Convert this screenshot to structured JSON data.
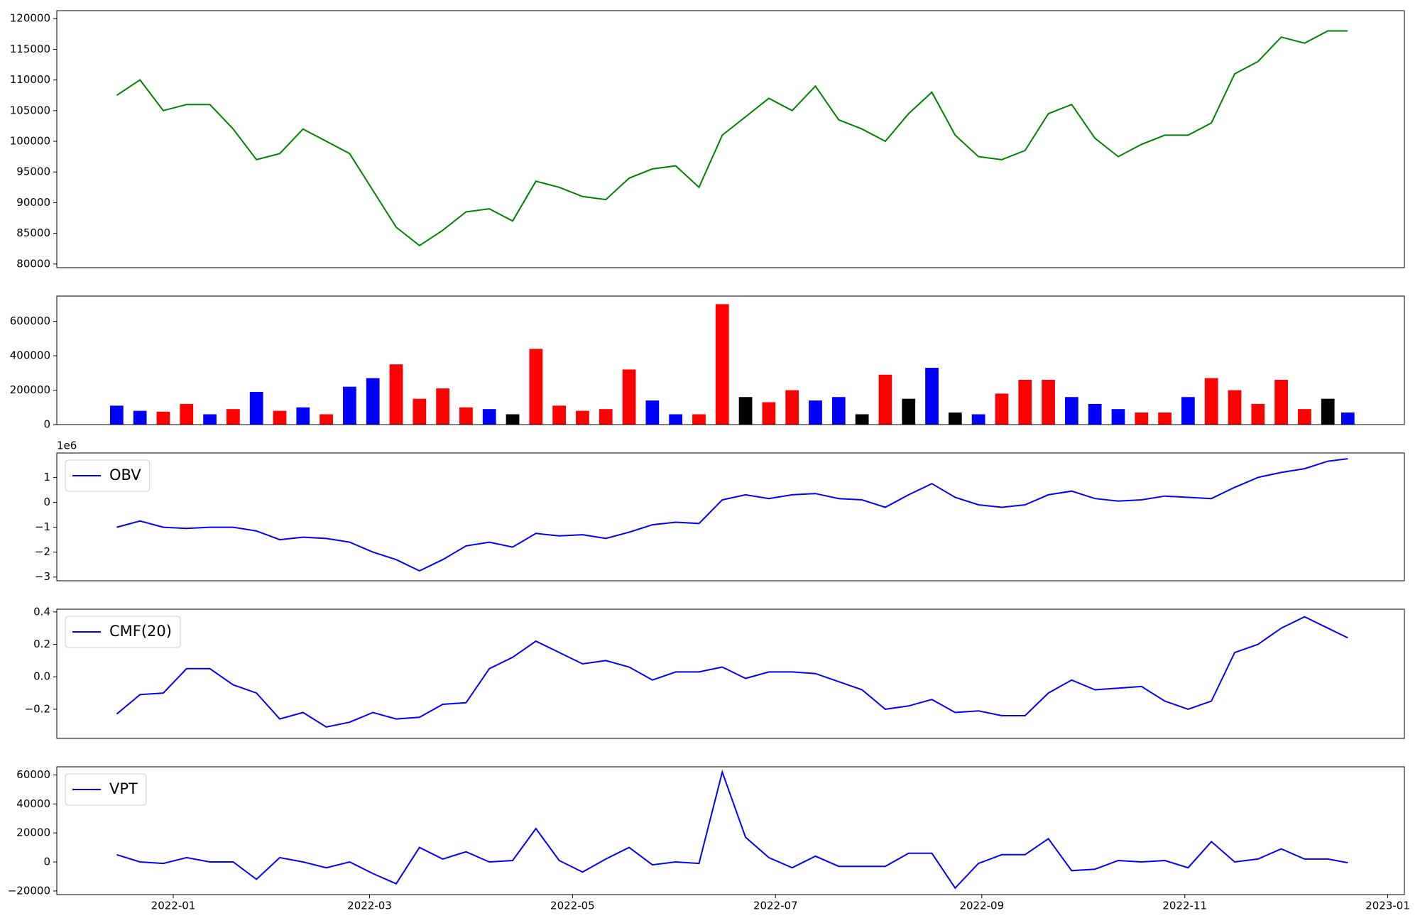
{
  "chart_data": [
    {
      "type": "line",
      "color": "#008000",
      "x": [
        "2021-12-15",
        "2021-12-22",
        "2021-12-29",
        "2022-01-05",
        "2022-01-12",
        "2022-01-19",
        "2022-01-26",
        "2022-02-02",
        "2022-02-09",
        "2022-02-16",
        "2022-02-23",
        "2022-03-02",
        "2022-03-09",
        "2022-03-16",
        "2022-03-23",
        "2022-03-30",
        "2022-04-06",
        "2022-04-13",
        "2022-04-20",
        "2022-04-27",
        "2022-05-04",
        "2022-05-11",
        "2022-05-18",
        "2022-05-25",
        "2022-06-01",
        "2022-06-08",
        "2022-06-15",
        "2022-06-22",
        "2022-06-29",
        "2022-07-06",
        "2022-07-13",
        "2022-07-20",
        "2022-07-27",
        "2022-08-03",
        "2022-08-10",
        "2022-08-17",
        "2022-08-24",
        "2022-08-31",
        "2022-09-07",
        "2022-09-14",
        "2022-09-21",
        "2022-09-28",
        "2022-10-05",
        "2022-10-12",
        "2022-10-19",
        "2022-10-26",
        "2022-11-02",
        "2022-11-09",
        "2022-11-16",
        "2022-11-23",
        "2022-11-30",
        "2022-12-07",
        "2022-12-14",
        "2022-12-20"
      ],
      "values": [
        107500,
        110000,
        105000,
        106000,
        106000,
        102000,
        97000,
        98000,
        102000,
        100000,
        98000,
        92000,
        86000,
        83000,
        85500,
        88500,
        89000,
        87000,
        93500,
        92500,
        91000,
        90500,
        94000,
        95500,
        96000,
        92500,
        101000,
        104000,
        107000,
        105000,
        109000,
        103500,
        102000,
        100000,
        104500,
        108000,
        101000,
        97500,
        97000,
        98500,
        104500,
        106000,
        100500,
        97500,
        99500,
        101000,
        101000,
        103000,
        111000,
        113000,
        117000,
        116000,
        118000,
        118000
      ],
      "xlim": [
        "2021-11-27",
        "2023-01-06"
      ],
      "ylim": [
        79400,
        121300
      ],
      "yticks": [
        80000,
        85000,
        90000,
        95000,
        100000,
        105000,
        110000,
        115000,
        120000
      ]
    },
    {
      "type": "bar",
      "x": [
        "2021-12-15",
        "2021-12-22",
        "2021-12-29",
        "2022-01-05",
        "2022-01-12",
        "2022-01-19",
        "2022-01-26",
        "2022-02-02",
        "2022-02-09",
        "2022-02-16",
        "2022-02-23",
        "2022-03-02",
        "2022-03-09",
        "2022-03-16",
        "2022-03-23",
        "2022-03-30",
        "2022-04-06",
        "2022-04-13",
        "2022-04-20",
        "2022-04-27",
        "2022-05-04",
        "2022-05-11",
        "2022-05-18",
        "2022-05-25",
        "2022-06-01",
        "2022-06-08",
        "2022-06-15",
        "2022-06-22",
        "2022-06-29",
        "2022-07-06",
        "2022-07-13",
        "2022-07-20",
        "2022-07-27",
        "2022-08-03",
        "2022-08-10",
        "2022-08-17",
        "2022-08-24",
        "2022-08-31",
        "2022-09-07",
        "2022-09-14",
        "2022-09-21",
        "2022-09-28",
        "2022-10-05",
        "2022-10-12",
        "2022-10-19",
        "2022-10-26",
        "2022-11-02",
        "2022-11-09",
        "2022-11-16",
        "2022-11-23",
        "2022-11-30",
        "2022-12-07",
        "2022-12-14",
        "2022-12-20"
      ],
      "values": [
        110000,
        80000,
        75000,
        120000,
        60000,
        90000,
        190000,
        80000,
        100000,
        60000,
        220000,
        270000,
        350000,
        150000,
        210000,
        100000,
        90000,
        60000,
        440000,
        110000,
        80000,
        90000,
        320000,
        140000,
        60000,
        60000,
        700000,
        160000,
        130000,
        200000,
        140000,
        160000,
        60000,
        290000,
        150000,
        330000,
        70000,
        60000,
        180000,
        260000,
        260000,
        160000,
        120000,
        90000,
        70000,
        70000,
        160000,
        270000,
        200000,
        120000,
        260000,
        90000,
        150000,
        70000
      ],
      "colors": [
        "#0000ff",
        "#0000ff",
        "#ff0000",
        "#ff0000",
        "#0000ff",
        "#ff0000",
        "#0000ff",
        "#ff0000",
        "#0000ff",
        "#ff0000",
        "#0000ff",
        "#0000ff",
        "#ff0000",
        "#ff0000",
        "#ff0000",
        "#ff0000",
        "#0000ff",
        "#000000",
        "#ff0000",
        "#ff0000",
        "#ff0000",
        "#ff0000",
        "#ff0000",
        "#0000ff",
        "#0000ff",
        "#ff0000",
        "#ff0000",
        "#000000",
        "#ff0000",
        "#ff0000",
        "#0000ff",
        "#0000ff",
        "#000000",
        "#ff0000",
        "#000000",
        "#0000ff",
        "#000000",
        "#0000ff",
        "#ff0000",
        "#ff0000",
        "#ff0000",
        "#0000ff",
        "#0000ff",
        "#0000ff",
        "#ff0000",
        "#ff0000",
        "#0000ff",
        "#ff0000",
        "#ff0000",
        "#ff0000",
        "#ff0000",
        "#ff0000",
        "#000000",
        "#0000ff"
      ],
      "xlim": [
        "2021-11-27",
        "2023-01-06"
      ],
      "ylim": [
        0,
        747000
      ],
      "yticks": [
        0,
        200000,
        400000,
        600000
      ]
    },
    {
      "type": "line",
      "legend": "upper left",
      "offset_label": "1e6",
      "x": [
        "2021-12-15",
        "2021-12-22",
        "2021-12-29",
        "2022-01-05",
        "2022-01-12",
        "2022-01-19",
        "2022-01-26",
        "2022-02-02",
        "2022-02-09",
        "2022-02-16",
        "2022-02-23",
        "2022-03-02",
        "2022-03-09",
        "2022-03-16",
        "2022-03-23",
        "2022-03-30",
        "2022-04-06",
        "2022-04-13",
        "2022-04-20",
        "2022-04-27",
        "2022-05-04",
        "2022-05-11",
        "2022-05-18",
        "2022-05-25",
        "2022-06-01",
        "2022-06-08",
        "2022-06-15",
        "2022-06-22",
        "2022-06-29",
        "2022-07-06",
        "2022-07-13",
        "2022-07-20",
        "2022-07-27",
        "2022-08-03",
        "2022-08-10",
        "2022-08-17",
        "2022-08-24",
        "2022-08-31",
        "2022-09-07",
        "2022-09-14",
        "2022-09-21",
        "2022-09-28",
        "2022-10-05",
        "2022-10-12",
        "2022-10-19",
        "2022-10-26",
        "2022-11-02",
        "2022-11-09",
        "2022-11-16",
        "2022-11-23",
        "2022-11-30",
        "2022-12-07",
        "2022-12-14",
        "2022-12-20"
      ],
      "series": [
        {
          "name": "OBV",
          "color": "#0000ff",
          "values": [
            -1.0,
            -0.75,
            -1.0,
            -1.05,
            -1.0,
            -1.0,
            -1.15,
            -1.5,
            -1.4,
            -1.45,
            -1.6,
            -2.0,
            -2.3,
            -2.75,
            -2.3,
            -1.75,
            -1.6,
            -1.8,
            -1.25,
            -1.35,
            -1.3,
            -1.45,
            -1.2,
            -0.9,
            -0.8,
            -0.85,
            0.1,
            0.3,
            0.15,
            0.3,
            0.35,
            0.15,
            0.1,
            -0.2,
            0.3,
            0.75,
            0.2,
            -0.1,
            -0.2,
            -0.1,
            0.3,
            0.45,
            0.15,
            0.05,
            0.1,
            0.25,
            0.2,
            0.15,
            0.6,
            1.0,
            1.2,
            1.35,
            1.65,
            1.75
          ]
        }
      ],
      "xlim": [
        "2021-11-27",
        "2023-01-06"
      ],
      "ylim": [
        -3.15,
        1.98
      ],
      "yticks": [
        {
          "value": -3,
          "label": "−3"
        },
        {
          "value": -2,
          "label": "−2"
        },
        {
          "value": -1,
          "label": "−1"
        },
        0,
        1
      ]
    },
    {
      "type": "line",
      "legend": "upper left",
      "x": [
        "2021-12-15",
        "2021-12-22",
        "2021-12-29",
        "2022-01-05",
        "2022-01-12",
        "2022-01-19",
        "2022-01-26",
        "2022-02-02",
        "2022-02-09",
        "2022-02-16",
        "2022-02-23",
        "2022-03-02",
        "2022-03-09",
        "2022-03-16",
        "2022-03-23",
        "2022-03-30",
        "2022-04-06",
        "2022-04-13",
        "2022-04-20",
        "2022-04-27",
        "2022-05-04",
        "2022-05-11",
        "2022-05-18",
        "2022-05-25",
        "2022-06-01",
        "2022-06-08",
        "2022-06-15",
        "2022-06-22",
        "2022-06-29",
        "2022-07-06",
        "2022-07-13",
        "2022-07-20",
        "2022-07-27",
        "2022-08-03",
        "2022-08-10",
        "2022-08-17",
        "2022-08-24",
        "2022-08-31",
        "2022-09-07",
        "2022-09-14",
        "2022-09-21",
        "2022-09-28",
        "2022-10-05",
        "2022-10-12",
        "2022-10-19",
        "2022-10-26",
        "2022-11-02",
        "2022-11-09",
        "2022-11-16",
        "2022-11-23",
        "2022-11-30",
        "2022-12-07",
        "2022-12-14",
        "2022-12-20"
      ],
      "series": [
        {
          "name": "CMF(20)",
          "color": "#0000ff",
          "values": [
            -0.23,
            -0.11,
            -0.1,
            0.05,
            0.05,
            -0.05,
            -0.1,
            -0.26,
            -0.22,
            -0.31,
            -0.28,
            -0.22,
            -0.26,
            -0.25,
            -0.17,
            -0.16,
            0.05,
            0.12,
            0.22,
            0.15,
            0.08,
            0.1,
            0.06,
            -0.02,
            0.03,
            0.03,
            0.06,
            -0.01,
            0.03,
            0.03,
            0.02,
            -0.03,
            -0.08,
            -0.2,
            -0.18,
            -0.14,
            -0.22,
            -0.21,
            -0.24,
            -0.24,
            -0.1,
            -0.02,
            -0.08,
            -0.07,
            -0.06,
            -0.15,
            -0.2,
            -0.15,
            0.15,
            0.2,
            0.3,
            0.37,
            0.3,
            0.24
          ]
        }
      ],
      "xlim": [
        "2021-11-27",
        "2023-01-06"
      ],
      "ylim": [
        -0.38,
        0.417
      ],
      "yticks": [
        {
          "value": -0.2,
          "label": "−0.2"
        },
        {
          "value": 0,
          "label": "0.0"
        },
        0.2,
        0.4
      ]
    },
    {
      "type": "line",
      "legend": "upper left",
      "x": [
        "2021-12-15",
        "2021-12-22",
        "2021-12-29",
        "2022-01-05",
        "2022-01-12",
        "2022-01-19",
        "2022-01-26",
        "2022-02-02",
        "2022-02-09",
        "2022-02-16",
        "2022-02-23",
        "2022-03-02",
        "2022-03-09",
        "2022-03-16",
        "2022-03-23",
        "2022-03-30",
        "2022-04-06",
        "2022-04-13",
        "2022-04-20",
        "2022-04-27",
        "2022-05-04",
        "2022-05-11",
        "2022-05-18",
        "2022-05-25",
        "2022-06-01",
        "2022-06-08",
        "2022-06-15",
        "2022-06-22",
        "2022-06-29",
        "2022-07-06",
        "2022-07-13",
        "2022-07-20",
        "2022-07-27",
        "2022-08-03",
        "2022-08-10",
        "2022-08-17",
        "2022-08-24",
        "2022-08-31",
        "2022-09-07",
        "2022-09-14",
        "2022-09-21",
        "2022-09-28",
        "2022-10-05",
        "2022-10-12",
        "2022-10-19",
        "2022-10-26",
        "2022-11-02",
        "2022-11-09",
        "2022-11-16",
        "2022-11-23",
        "2022-11-30",
        "2022-12-07",
        "2022-12-14",
        "2022-12-20"
      ],
      "series": [
        {
          "name": "VPT",
          "color": "#0000ff",
          "values": [
            5000,
            0,
            -1000,
            3000,
            0,
            0,
            -12000,
            3000,
            0,
            -4000,
            0,
            -8000,
            -15000,
            10000,
            2000,
            7000,
            0,
            1000,
            23000,
            1000,
            -7000,
            2000,
            10000,
            -2000,
            0,
            -1000,
            62000,
            17000,
            3000,
            -4000,
            4000,
            -3000,
            -3000,
            -3000,
            6000,
            6000,
            -18000,
            -1000,
            5000,
            5000,
            16000,
            -6000,
            -5000,
            1000,
            0,
            1000,
            -4000,
            14000,
            0,
            2000,
            9000,
            2000,
            2000,
            -500
          ]
        }
      ],
      "xlim": [
        "2021-11-27",
        "2023-01-06"
      ],
      "ylim": [
        -22500,
        65600
      ],
      "yticks": [
        {
          "value": -20000,
          "label": "−20000"
        },
        0,
        20000,
        40000,
        60000
      ],
      "xticks": [
        {
          "value": "2022-01-01",
          "label": "2022-01"
        },
        {
          "value": "2022-03-01",
          "label": "2022-03"
        },
        {
          "value": "2022-05-01",
          "label": "2022-05"
        },
        {
          "value": "2022-07-01",
          "label": "2022-07"
        },
        {
          "value": "2022-09-01",
          "label": "2022-09"
        },
        {
          "value": "2022-11-01",
          "label": "2022-11"
        },
        {
          "value": "2023-01-01",
          "label": "2023-01"
        }
      ]
    }
  ]
}
